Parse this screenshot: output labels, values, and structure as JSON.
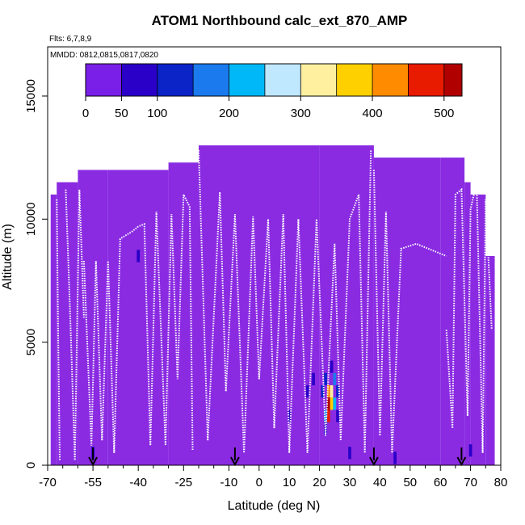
{
  "chart_data": {
    "type": "heatmap",
    "title": "ATOM1 Northbound calc_ext_870_AMP",
    "subtitle_flights": "Flts: 6,7,8,9",
    "subtitle_dates": "MMDD: 0812,0815,0817,0820",
    "xlabel": "Latitude (deg N)",
    "ylabel": "Altitude (m)",
    "xlim": [
      -70,
      80
    ],
    "ylim": [
      0,
      17000
    ],
    "x_ticks": [
      -70,
      -55,
      -40,
      -25,
      -10,
      0,
      10,
      20,
      30,
      40,
      50,
      60,
      70,
      80
    ],
    "x_minor_ticks": [
      -65,
      -60,
      -50,
      -45,
      -35,
      -30,
      -20,
      -15,
      -5,
      5,
      15,
      25,
      35,
      45,
      55,
      65,
      75
    ],
    "y_ticks": [
      0,
      5000,
      10000,
      15000
    ],
    "colorbar": {
      "ticks": [
        0,
        50,
        100,
        200,
        300,
        400,
        500
      ],
      "range": [
        0,
        525
      ],
      "boundaries": [
        0,
        50,
        100,
        150,
        200,
        250,
        300,
        350,
        400,
        450,
        500
      ],
      "colors": [
        "#7a1fe8",
        "#2a00c8",
        "#0a24c8",
        "#1a7aee",
        "#00b8f8",
        "#bfe8ff",
        "#fff0a0",
        "#ffd000",
        "#ff8c00",
        "#e81a00",
        "#b00000"
      ]
    },
    "background_color": "#8a2be2",
    "coverage": [
      {
        "lat": [
          -69,
          -67
        ],
        "alt": [
          0,
          11000
        ]
      },
      {
        "lat": [
          -67,
          -60
        ],
        "alt": [
          0,
          11500
        ]
      },
      {
        "lat": [
          -60,
          -50
        ],
        "alt": [
          0,
          12000
        ]
      },
      {
        "lat": [
          -50,
          -30
        ],
        "alt": [
          0,
          12000
        ]
      },
      {
        "lat": [
          -30,
          -20
        ],
        "alt": [
          0,
          12300
        ]
      },
      {
        "lat": [
          -20,
          20
        ],
        "alt": [
          0,
          13000
        ]
      },
      {
        "lat": [
          20,
          38
        ],
        "alt": [
          0,
          13000
        ]
      },
      {
        "lat": [
          38,
          60
        ],
        "alt": [
          0,
          12500
        ]
      },
      {
        "lat": [
          60,
          68
        ],
        "alt": [
          0,
          12500
        ]
      },
      {
        "lat": [
          68,
          70
        ],
        "alt": [
          0,
          11500
        ]
      },
      {
        "lat": [
          70,
          75
        ],
        "alt": [
          0,
          11000
        ]
      },
      {
        "lat": [
          75,
          78
        ],
        "alt": [
          0,
          8500
        ]
      }
    ],
    "cells": [
      {
        "lat": 23,
        "alt": 3000,
        "value": 400
      },
      {
        "lat": 23,
        "alt": 2500,
        "value": 500
      },
      {
        "lat": 23,
        "alt": 2000,
        "value": 450
      },
      {
        "lat": 24,
        "alt": 3000,
        "value": 300
      },
      {
        "lat": 24,
        "alt": 2500,
        "value": 350
      },
      {
        "lat": 25,
        "alt": 2500,
        "value": 200
      },
      {
        "lat": 22,
        "alt": 3500,
        "value": 120
      },
      {
        "lat": 22,
        "alt": 2000,
        "value": 150
      },
      {
        "lat": 21,
        "alt": 3000,
        "value": 100
      },
      {
        "lat": 25,
        "alt": 3500,
        "value": 150
      },
      {
        "lat": 26,
        "alt": 3000,
        "value": 110
      },
      {
        "lat": 24,
        "alt": 4000,
        "value": 80
      },
      {
        "lat": 22,
        "alt": 1500,
        "value": 90
      },
      {
        "lat": 26,
        "alt": 2000,
        "value": 90
      },
      {
        "lat": 18,
        "alt": 3500,
        "value": 70
      },
      {
        "lat": 16,
        "alt": 3000,
        "value": 60
      },
      {
        "lat": 10,
        "alt": 2000,
        "value": 60
      },
      {
        "lat": -55,
        "alt": 500,
        "value": 60
      },
      {
        "lat": 30,
        "alt": 500,
        "value": 65
      },
      {
        "lat": 45,
        "alt": 300,
        "value": 60
      },
      {
        "lat": -40,
        "alt": 8500,
        "value": 55
      },
      {
        "lat": 70,
        "alt": 600,
        "value": 60
      }
    ],
    "flight_tracks": [
      [
        [
          -67,
          10800
        ],
        [
          -66.5,
          5000
        ],
        [
          -66,
          200
        ]
      ],
      [
        [
          -64,
          11200
        ],
        [
          -62.5,
          6000
        ],
        [
          -61,
          200
        ],
        [
          -59.5,
          11200
        ],
        [
          -58,
          6000
        ]
      ],
      [
        [
          -58,
          8300
        ],
        [
          -55.5,
          800
        ],
        [
          -54,
          8300
        ],
        [
          -52,
          1000
        ],
        [
          -50,
          8300
        ],
        [
          -48,
          500
        ],
        [
          -46,
          9200
        ],
        [
          -42,
          9500
        ],
        [
          -40,
          9700
        ],
        [
          -38,
          9800
        ],
        [
          -36,
          800
        ],
        [
          -34,
          10300
        ],
        [
          -31,
          800
        ],
        [
          -29,
          10200
        ],
        [
          -27,
          3500
        ],
        [
          -25,
          11000
        ],
        [
          -23,
          10500
        ],
        [
          -22,
          600
        ]
      ],
      [
        [
          -20,
          12800
        ],
        [
          -17,
          1000
        ],
        [
          -13,
          11100
        ],
        [
          -11,
          3000
        ],
        [
          -8,
          10200
        ],
        [
          -5,
          500
        ],
        [
          -2,
          10100
        ],
        [
          0,
          3500
        ],
        [
          3,
          10000
        ],
        [
          5,
          1500
        ],
        [
          8,
          10200
        ],
        [
          10,
          500
        ],
        [
          13,
          10000
        ],
        [
          16,
          500
        ],
        [
          19,
          10000
        ],
        [
          22,
          1200
        ],
        [
          25,
          9000
        ],
        [
          27,
          1000
        ],
        [
          30,
          10000
        ],
        [
          33,
          11000
        ],
        [
          35,
          500
        ],
        [
          37,
          12800
        ]
      ],
      [
        [
          38,
          12000
        ],
        [
          40,
          1200
        ],
        [
          42,
          10300
        ],
        [
          44,
          500
        ],
        [
          47,
          8800
        ],
        [
          52,
          9000
        ],
        [
          58,
          8700
        ],
        [
          62,
          8500
        ]
      ],
      [
        [
          62,
          5500
        ],
        [
          64,
          1500
        ],
        [
          65,
          11000
        ],
        [
          67,
          11200
        ],
        [
          69,
          2000
        ],
        [
          70,
          10400
        ],
        [
          72,
          11500
        ],
        [
          74,
          500
        ],
        [
          75,
          10800
        ],
        [
          77,
          5500
        ]
      ]
    ],
    "arrow_latitudes": [
      -55,
      -8,
      38,
      67
    ]
  }
}
